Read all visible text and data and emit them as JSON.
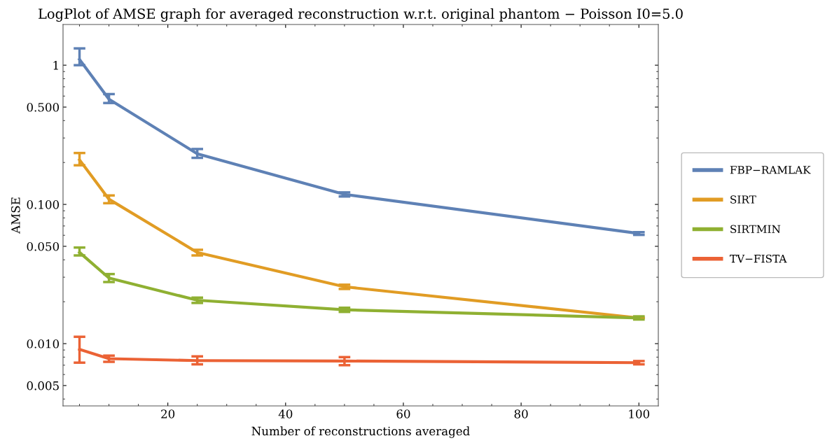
{
  "chart_data": {
    "type": "line",
    "title": "LogPlot of AMSE graph for averaged reconstruction w.r.t. original phantom − Poisson I0=5.0",
    "xlabel": "Number of reconstructions averaged",
    "ylabel": "AMSE",
    "x": [
      5,
      10,
      25,
      50,
      100
    ],
    "series": [
      {
        "name": "FBP−RAMLAK",
        "color": "#5e81b5",
        "values": [
          1.1,
          0.57,
          0.231,
          0.118,
          0.0618
        ],
        "errors": [
          [
            1.0,
            1.32
          ],
          [
            0.535,
            0.62
          ],
          [
            0.216,
            0.25
          ],
          [
            0.114,
            0.122
          ],
          [
            0.0604,
            0.0632
          ]
        ]
      },
      {
        "name": "SIRT",
        "color": "#e19c24",
        "values": [
          0.209,
          0.109,
          0.0452,
          0.0256,
          0.0153
        ],
        "errors": [
          [
            0.191,
            0.234
          ],
          [
            0.102,
            0.116
          ],
          [
            0.043,
            0.0472
          ],
          [
            0.0247,
            0.0265
          ],
          null
        ]
      },
      {
        "name": "SIRTMIN",
        "color": "#8fb032",
        "values": [
          0.0452,
          0.0296,
          0.0205,
          0.0175,
          0.0153
        ],
        "errors": [
          [
            0.043,
            0.049
          ],
          [
            0.0277,
            0.0316
          ],
          [
            0.0196,
            0.0214
          ],
          [
            0.0169,
            0.0181
          ],
          [
            0.0149,
            0.0157
          ]
        ]
      },
      {
        "name": "TV−FISTA",
        "color": "#eb6235",
        "values": [
          0.0091,
          0.0078,
          0.00755,
          0.0075,
          0.0073
        ],
        "errors": [
          [
            0.0073,
            0.0112
          ],
          [
            0.0074,
            0.0082
          ],
          [
            0.0071,
            0.0081
          ],
          [
            0.007,
            0.008
          ],
          [
            0.0071,
            0.0075
          ]
        ]
      }
    ],
    "log": "y",
    "xlim": [
      2.2,
      103.3
    ],
    "ylim": [
      0.00357,
      1.96
    ],
    "xticks": [
      20,
      40,
      60,
      80,
      100
    ],
    "yticks": [
      {
        "value": 0.005,
        "label": "0.005"
      },
      {
        "value": 0.01,
        "label": "0.010"
      },
      {
        "value": 0.05,
        "label": "0.050"
      },
      {
        "value": 0.1,
        "label": "0.100"
      },
      {
        "value": 0.5,
        "label": "0.500"
      },
      1
    ],
    "legend": "right",
    "grid": false,
    "marker": "none",
    "line_style": "solid"
  }
}
